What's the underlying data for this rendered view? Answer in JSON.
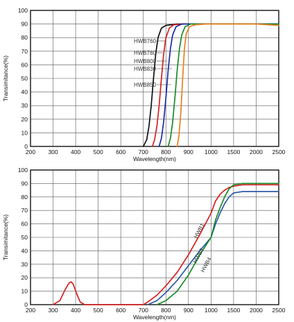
{
  "chart_data": [
    {
      "type": "line",
      "title": "",
      "xlabel": "Wavelength(nm)",
      "ylabel": "Transimitance(%)",
      "x_ticks": [
        "200",
        "300",
        "400",
        "500",
        "600",
        "700",
        "800",
        "900",
        "1000",
        "1500",
        "2000",
        "2500"
      ],
      "y_ticks": [
        "0",
        "10",
        "20",
        "30",
        "40",
        "50",
        "60",
        "70",
        "80",
        "90",
        "100"
      ],
      "ylim": [
        0,
        100
      ],
      "grid": true,
      "legend": "labels-with-leader-lines",
      "series": [
        {
          "name": "HWB760",
          "color": "#111111",
          "points": [
            [
              700,
              0
            ],
            [
              715,
              5
            ],
            [
              725,
              15
            ],
            [
              735,
              30
            ],
            [
              745,
              50
            ],
            [
              755,
              68
            ],
            [
              765,
              80
            ],
            [
              780,
              87
            ],
            [
              800,
              89
            ],
            [
              850,
              90
            ],
            [
              1000,
              90
            ],
            [
              1500,
              90
            ],
            [
              2000,
              90
            ],
            [
              2500,
              90
            ]
          ]
        },
        {
          "name": "HWB780",
          "color": "#d42020",
          "points": [
            [
              740,
              0
            ],
            [
              750,
              5
            ],
            [
              760,
              15
            ],
            [
              770,
              30
            ],
            [
              780,
              50
            ],
            [
              790,
              68
            ],
            [
              800,
              80
            ],
            [
              815,
              87
            ],
            [
              835,
              89.5
            ],
            [
              880,
              90
            ],
            [
              1000,
              90
            ],
            [
              1500,
              90
            ],
            [
              2000,
              90
            ],
            [
              2500,
              90
            ]
          ]
        },
        {
          "name": "HWB800",
          "color": "#1a2aa8",
          "points": [
            [
              770,
              0
            ],
            [
              780,
              6
            ],
            [
              790,
              18
            ],
            [
              800,
              36
            ],
            [
              810,
              56
            ],
            [
              820,
              72
            ],
            [
              830,
              82
            ],
            [
              845,
              88
            ],
            [
              870,
              90
            ],
            [
              1000,
              90
            ],
            [
              1500,
              90
            ],
            [
              2000,
              90
            ],
            [
              2500,
              90
            ]
          ]
        },
        {
          "name": "HWB830",
          "color": "#1a8a2a",
          "points": [
            [
              810,
              0
            ],
            [
              820,
              6
            ],
            [
              830,
              18
            ],
            [
              840,
              36
            ],
            [
              850,
              56
            ],
            [
              860,
              72
            ],
            [
              870,
              82
            ],
            [
              885,
              88
            ],
            [
              910,
              90
            ],
            [
              1000,
              90
            ],
            [
              1500,
              90
            ],
            [
              2000,
              90
            ],
            [
              2500,
              90
            ]
          ]
        },
        {
          "name": "HWB850",
          "color": "#e8801a",
          "points": [
            [
              850,
              0
            ],
            [
              858,
              8
            ],
            [
              866,
              25
            ],
            [
              874,
              50
            ],
            [
              882,
              72
            ],
            [
              890,
              83
            ],
            [
              905,
              88
            ],
            [
              930,
              89.5
            ],
            [
              980,
              90
            ],
            [
              1500,
              90
            ],
            [
              2000,
              90
            ],
            [
              2500,
              89
            ]
          ]
        }
      ],
      "annotations": [
        {
          "text": "HWB760",
          "series": "HWB760"
        },
        {
          "text": "HWB780",
          "series": "HWB780"
        },
        {
          "text": "HWB800",
          "series": "HWB800"
        },
        {
          "text": "HWB830",
          "series": "HWB830"
        },
        {
          "text": "HWB850",
          "series": "HWB850"
        }
      ]
    },
    {
      "type": "line",
      "title": "",
      "xlabel": "Wavelength(nm)",
      "ylabel": "Transimitance(%)",
      "x_ticks": [
        "200",
        "300",
        "400",
        "500",
        "600",
        "700",
        "800",
        "900",
        "1000",
        "1500",
        "2000",
        "2500"
      ],
      "y_ticks": [
        "0",
        "10",
        "20",
        "30",
        "40",
        "50",
        "60",
        "70",
        "80",
        "90",
        "100"
      ],
      "ylim": [
        0,
        100
      ],
      "grid": true,
      "legend": "labels-along-curves",
      "series": [
        {
          "name": "HWB1",
          "color": "#d42020",
          "points": [
            [
              300,
              0
            ],
            [
              330,
              3
            ],
            [
              350,
              10
            ],
            [
              370,
              16
            ],
            [
              380,
              17
            ],
            [
              390,
              15
            ],
            [
              405,
              8
            ],
            [
              420,
              2
            ],
            [
              440,
              0
            ],
            [
              700,
              0
            ],
            [
              720,
              2
            ],
            [
              760,
              7
            ],
            [
              800,
              14
            ],
            [
              850,
              24
            ],
            [
              900,
              37
            ],
            [
              950,
              52
            ],
            [
              1000,
              68
            ],
            [
              1100,
              77
            ],
            [
              1200,
              82
            ],
            [
              1300,
              85
            ],
            [
              1400,
              87
            ],
            [
              1500,
              88
            ],
            [
              1700,
              89
            ],
            [
              2000,
              89
            ],
            [
              2500,
              89
            ]
          ]
        },
        {
          "name": "HWB3",
          "color": "#2d5aa8",
          "points": [
            [
              720,
              0
            ],
            [
              760,
              3
            ],
            [
              800,
              9
            ],
            [
              850,
              18
            ],
            [
              900,
              29
            ],
            [
              950,
              40
            ],
            [
              1000,
              50
            ],
            [
              1100,
              60
            ],
            [
              1200,
              68
            ],
            [
              1300,
              75
            ],
            [
              1400,
              80
            ],
            [
              1500,
              83
            ],
            [
              1700,
              84
            ],
            [
              2000,
              84
            ],
            [
              2500,
              84
            ]
          ]
        },
        {
          "name": "HWB4",
          "color": "#1a8a2a",
          "points": [
            [
              760,
              0
            ],
            [
              800,
              3
            ],
            [
              850,
              10
            ],
            [
              900,
              22
            ],
            [
              950,
              37
            ],
            [
              1000,
              50
            ],
            [
              1100,
              63
            ],
            [
              1200,
              72
            ],
            [
              1300,
              80
            ],
            [
              1400,
              86
            ],
            [
              1500,
              89
            ],
            [
              1700,
              90
            ],
            [
              2000,
              90
            ],
            [
              2500,
              90
            ]
          ]
        }
      ],
      "annotations": [
        {
          "text": "HWB1",
          "series": "HWB1"
        },
        {
          "text": "HWB3",
          "series": "HWB3"
        },
        {
          "text": "HWB4",
          "series": "HWB4"
        }
      ]
    }
  ]
}
